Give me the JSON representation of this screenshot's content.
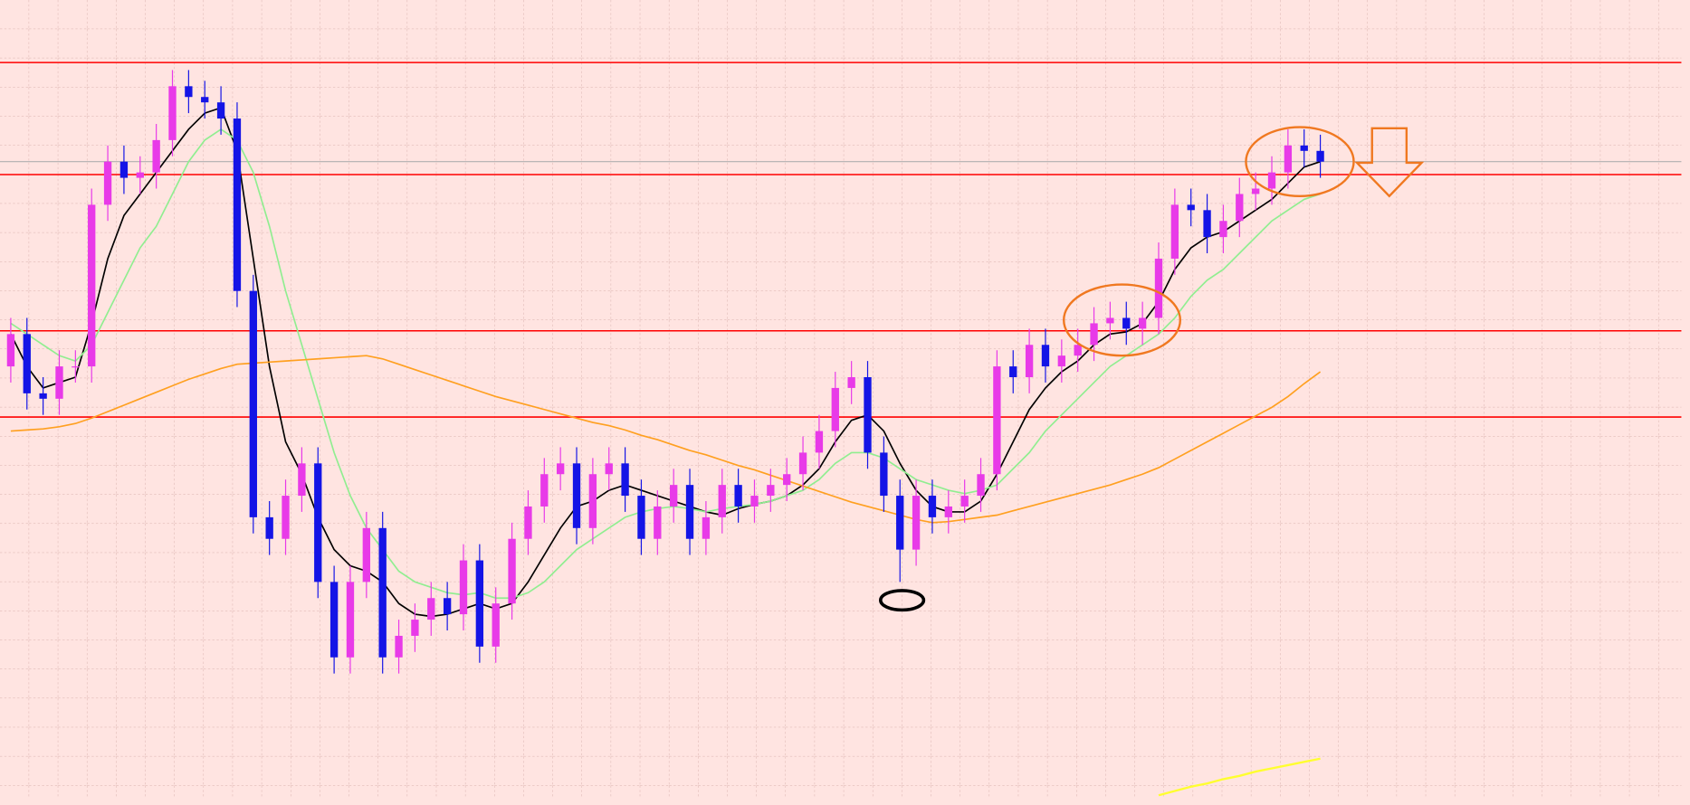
{
  "chart_data": {
    "type": "candlestick",
    "ylim": [
      0,
      740
    ],
    "open": [
      400,
      430,
      375,
      370,
      400,
      400,
      550,
      590,
      575,
      580,
      610,
      660,
      650,
      645,
      630,
      470,
      260,
      240,
      280,
      310,
      200,
      130,
      200,
      250,
      130,
      150,
      165,
      185,
      170,
      220,
      140,
      180,
      240,
      270,
      300,
      310,
      250,
      300,
      310,
      280,
      240,
      270,
      290,
      240,
      260,
      290,
      270,
      280,
      290,
      300,
      320,
      340,
      380,
      390,
      320,
      280,
      230,
      280,
      260,
      270,
      280,
      300,
      400,
      390,
      420,
      400,
      410,
      420,
      440,
      445,
      435,
      445,
      500,
      550,
      545,
      520,
      535,
      560,
      565,
      580,
      605,
      600
    ],
    "high": [
      445,
      445,
      390,
      415,
      415,
      565,
      605,
      605,
      595,
      625,
      675,
      675,
      665,
      660,
      645,
      485,
      275,
      295,
      325,
      325,
      215,
      215,
      265,
      265,
      165,
      180,
      200,
      200,
      235,
      235,
      195,
      255,
      285,
      315,
      325,
      325,
      315,
      325,
      325,
      295,
      285,
      305,
      305,
      275,
      305,
      305,
      295,
      305,
      315,
      335,
      355,
      395,
      405,
      405,
      335,
      295,
      295,
      295,
      285,
      295,
      315,
      415,
      415,
      435,
      435,
      425,
      435,
      455,
      460,
      460,
      460,
      515,
      565,
      565,
      560,
      550,
      575,
      580,
      595,
      620,
      620,
      615
    ],
    "low": [
      385,
      360,
      355,
      355,
      385,
      385,
      535,
      560,
      560,
      565,
      595,
      635,
      630,
      615,
      455,
      245,
      225,
      225,
      265,
      185,
      115,
      115,
      185,
      115,
      115,
      135,
      150,
      155,
      155,
      125,
      125,
      165,
      225,
      255,
      285,
      235,
      235,
      285,
      265,
      225,
      225,
      255,
      225,
      225,
      245,
      255,
      255,
      265,
      275,
      285,
      305,
      325,
      365,
      305,
      265,
      200,
      215,
      245,
      245,
      255,
      265,
      285,
      375,
      375,
      385,
      385,
      395,
      405,
      425,
      420,
      420,
      430,
      485,
      530,
      505,
      505,
      520,
      545,
      550,
      565,
      585,
      575
    ],
    "close": [
      430,
      375,
      370,
      400,
      400,
      550,
      590,
      575,
      580,
      610,
      660,
      650,
      645,
      630,
      470,
      260,
      240,
      280,
      310,
      200,
      130,
      200,
      250,
      130,
      150,
      165,
      185,
      170,
      220,
      140,
      180,
      240,
      270,
      300,
      310,
      250,
      300,
      310,
      280,
      240,
      270,
      290,
      240,
      260,
      290,
      270,
      280,
      290,
      300,
      320,
      340,
      380,
      390,
      320,
      280,
      230,
      280,
      260,
      270,
      280,
      300,
      400,
      390,
      420,
      400,
      410,
      420,
      440,
      445,
      435,
      445,
      500,
      550,
      545,
      520,
      535,
      560,
      565,
      580,
      605,
      600,
      590
    ],
    "up_color": "#e83ae8",
    "down_color": "#1414e6",
    "lines": [
      {
        "color": "#000000",
        "values": [
          430,
          400,
          380,
          385,
          390,
          440,
          500,
          540,
          560,
          580,
          600,
          620,
          635,
          640,
          600,
          500,
          400,
          330,
          300,
          260,
          230,
          215,
          210,
          200,
          180,
          170,
          168,
          170,
          175,
          180,
          175,
          180,
          200,
          225,
          250,
          270,
          275,
          285,
          290,
          285,
          280,
          275,
          270,
          265,
          262,
          268,
          272,
          275,
          280,
          290,
          305,
          330,
          350,
          355,
          340,
          310,
          285,
          270,
          265,
          265,
          275,
          300,
          330,
          360,
          380,
          395,
          405,
          420,
          430,
          432,
          440,
          460,
          490,
          510,
          520,
          525,
          535,
          545,
          555,
          570,
          585,
          590
        ]
      },
      {
        "color": "#90ee90",
        "values": [
          440,
          430,
          420,
          410,
          405,
          420,
          450,
          480,
          510,
          530,
          560,
          590,
          610,
          620,
          610,
          580,
          530,
          470,
          420,
          370,
          320,
          280,
          250,
          230,
          210,
          200,
          195,
          190,
          188,
          190,
          185,
          185,
          190,
          200,
          215,
          230,
          240,
          250,
          260,
          265,
          268,
          270,
          268,
          265,
          268,
          270,
          272,
          275,
          280,
          285,
          295,
          310,
          320,
          320,
          315,
          305,
          295,
          290,
          285,
          282,
          285,
          290,
          305,
          320,
          340,
          355,
          370,
          385,
          400,
          410,
          420,
          430,
          445,
          465,
          480,
          490,
          505,
          520,
          535,
          545,
          555,
          560
        ]
      },
      {
        "color": "#ffa020",
        "values": [
          340,
          341,
          342,
          344,
          347,
          352,
          358,
          364,
          370,
          376,
          382,
          388,
          393,
          398,
          402,
          403,
          404,
          405,
          406,
          407,
          408,
          409,
          410,
          407,
          402,
          397,
          392,
          387,
          382,
          377,
          372,
          368,
          364,
          360,
          356,
          352,
          348,
          345,
          341,
          336,
          332,
          327,
          322,
          318,
          313,
          308,
          304,
          299,
          294,
          289,
          284,
          279,
          274,
          270,
          266,
          262,
          258,
          255,
          256,
          258,
          260,
          262,
          266,
          270,
          274,
          278,
          282,
          286,
          290,
          295,
          300,
          306,
          314,
          322,
          330,
          338,
          346,
          354,
          362,
          372,
          384,
          395
        ]
      },
      {
        "color": "#ffff30",
        "values": [
          null,
          null,
          null,
          null,
          null,
          null,
          null,
          null,
          null,
          null,
          null,
          null,
          null,
          null,
          null,
          null,
          null,
          null,
          null,
          null,
          null,
          null,
          null,
          null,
          null,
          null,
          null,
          null,
          null,
          null,
          null,
          null,
          null,
          null,
          null,
          null,
          null,
          null,
          null,
          null,
          null,
          null,
          null,
          null,
          null,
          null,
          null,
          null,
          null,
          null,
          null,
          null,
          null,
          null,
          null,
          null,
          null,
          null,
          null,
          null,
          null,
          null,
          null,
          null,
          null,
          null,
          null,
          null,
          null,
          null,
          null,
          2,
          6,
          10,
          13,
          17,
          20,
          24,
          27,
          30,
          33,
          36
        ]
      }
    ],
    "hlines": [
      682,
      578,
      433,
      353
    ],
    "hline_color": "#ff0000",
    "price_line": 590,
    "price_line_color": "#b0b0b0"
  }
}
